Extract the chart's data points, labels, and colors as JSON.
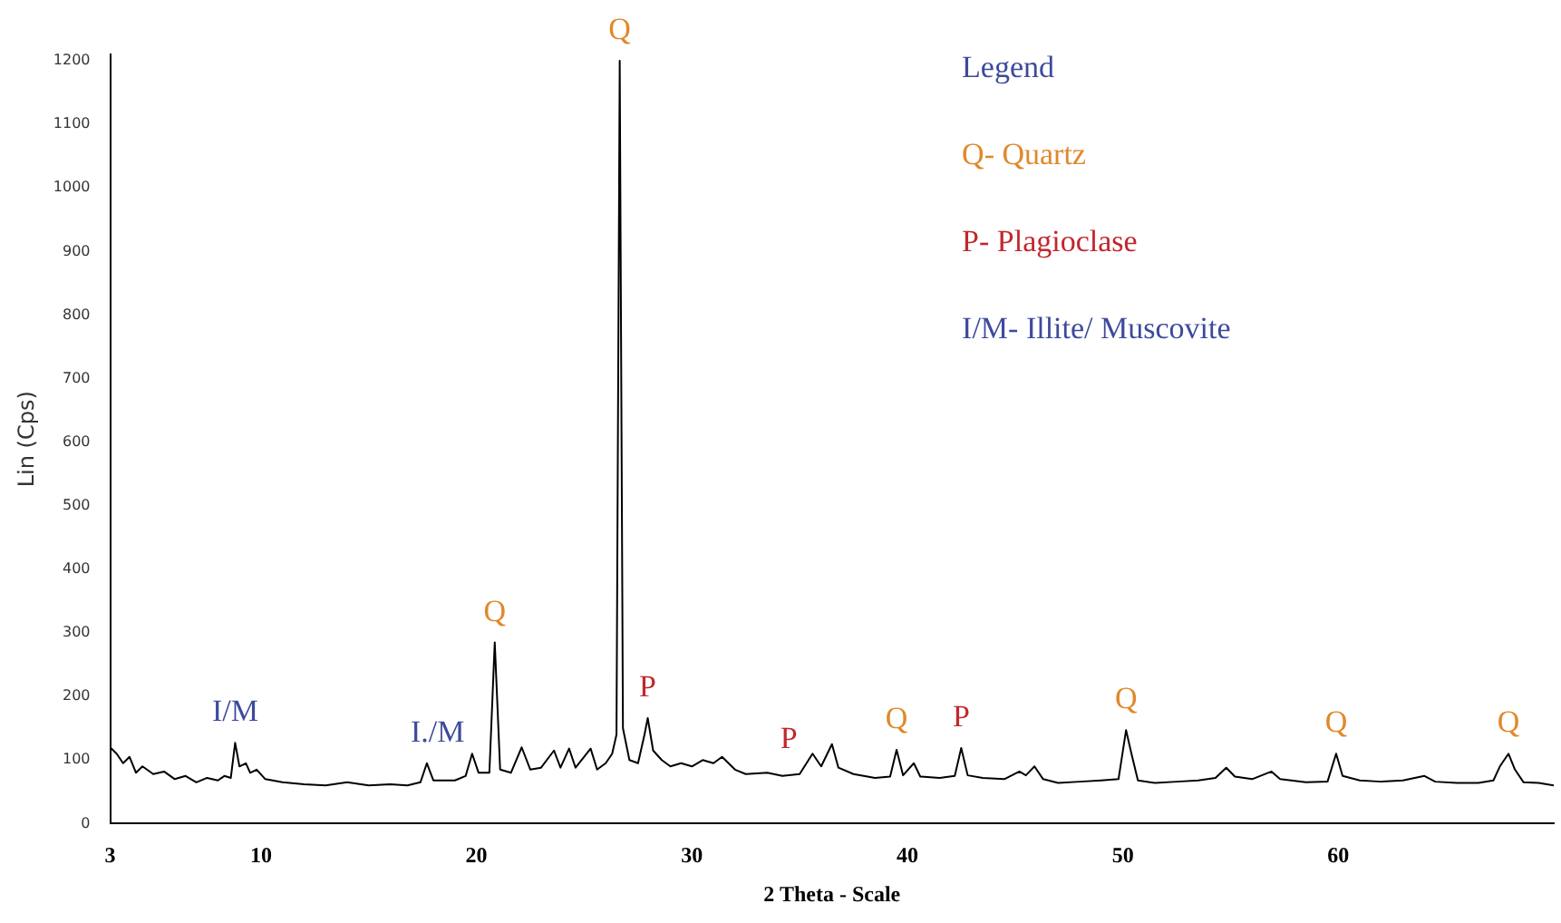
{
  "chart_data": {
    "type": "line",
    "xlabel": "2 Theta - Scale",
    "ylabel": "Lin (Cps)",
    "x": [
      3,
      3.3,
      3.6,
      3.9,
      4.2,
      4.5,
      5,
      5.5,
      6,
      6.5,
      7,
      7.5,
      8,
      8.3,
      8.6,
      8.8,
      9.0,
      9.3,
      9.5,
      9.8,
      10.2,
      11,
      12,
      13,
      14,
      15,
      16,
      16.8,
      17.4,
      17.7,
      18.0,
      19,
      19.5,
      19.8,
      20.1,
      20.6,
      20.85,
      21.1,
      21.6,
      22.1,
      22.5,
      23.0,
      23.6,
      23.9,
      24.3,
      24.6,
      25.3,
      25.6,
      26.0,
      26.3,
      26.5,
      26.65,
      26.8,
      27.1,
      27.5,
      27.8,
      27.95,
      28.2,
      28.6,
      29.0,
      29.5,
      30.0,
      30.5,
      31.0,
      31.4,
      32.0,
      32.5,
      33.5,
      34.2,
      35.0,
      35.6,
      36.0,
      36.5,
      36.8,
      37.5,
      38.5,
      39.2,
      39.5,
      39.8,
      40.3,
      40.6,
      41.5,
      42.2,
      42.5,
      42.8,
      43.5,
      44.5,
      45.2,
      45.5,
      45.9,
      46.3,
      47,
      48,
      49,
      49.8,
      50.15,
      50.4,
      50.7,
      51.5,
      52.5,
      53.5,
      54.3,
      54.8,
      55.2,
      56,
      56.9,
      57.3,
      58.5,
      59.5,
      59.9,
      60.2,
      61,
      62,
      63,
      64,
      64.5,
      65.5,
      66.5,
      67.2,
      67.5,
      67.9,
      68.2,
      68.6,
      69.3,
      70
    ],
    "series": [
      {
        "color": "#000000",
        "values": [
          120,
          110,
          95,
          105,
          80,
          90,
          78,
          82,
          70,
          75,
          65,
          72,
          68,
          75,
          72,
          127,
          90,
          95,
          80,
          85,
          70,
          65,
          62,
          60,
          65,
          60,
          62,
          60,
          65,
          95,
          68,
          68,
          75,
          110,
          80,
          80,
          285,
          85,
          80,
          120,
          85,
          88,
          115,
          88,
          118,
          88,
          118,
          85,
          95,
          110,
          140,
          1200,
          150,
          100,
          95,
          140,
          166,
          115,
          100,
          90,
          95,
          90,
          100,
          95,
          105,
          85,
          78,
          80,
          75,
          78,
          110,
          90,
          125,
          88,
          78,
          72,
          74,
          116,
          76,
          95,
          74,
          72,
          75,
          119,
          76,
          72,
          70,
          82,
          76,
          90,
          70,
          64,
          66,
          68,
          70,
          147,
          110,
          68,
          64,
          66,
          68,
          72,
          88,
          74,
          70,
          82,
          70,
          65,
          66,
          110,
          75,
          68,
          66,
          68,
          75,
          66,
          64,
          64,
          68,
          90,
          110,
          85,
          65,
          64,
          60
        ]
      }
    ],
    "xlim": [
      3,
      70
    ],
    "xticks": [
      3,
      10,
      20,
      30,
      40,
      50,
      60
    ],
    "ylim": [
      0,
      1210
    ],
    "yticks": [
      0,
      100,
      200,
      300,
      400,
      500,
      600,
      700,
      800,
      900,
      1000,
      1100,
      1200
    ],
    "grid": false,
    "legend": false,
    "marker": "none",
    "line_style": "solid",
    "annotations": [
      "Legend",
      "Q- Quartz",
      "P- Plagioclase",
      "I/M- Illite/ Muscovite",
      {
        "text": "I/M",
        "x": 8.8,
        "y": 127
      },
      {
        "text": "I./M",
        "x": 18.2,
        "y": 95
      },
      {
        "text": "Q",
        "x": 20.85,
        "y": 285
      },
      {
        "text": "Q",
        "x": 26.65,
        "y": 1200
      },
      {
        "text": "P",
        "x": 27.95,
        "y": 166
      },
      {
        "text": "P",
        "x": 34.5,
        "y": 85
      },
      {
        "text": "Q",
        "x": 39.5,
        "y": 116
      },
      {
        "text": "P",
        "x": 42.5,
        "y": 119
      },
      {
        "text": "Q",
        "x": 50.15,
        "y": 147
      },
      {
        "text": "Q",
        "x": 59.9,
        "y": 110
      },
      {
        "text": "Q",
        "x": 67.9,
        "y": 110
      }
    ]
  }
}
